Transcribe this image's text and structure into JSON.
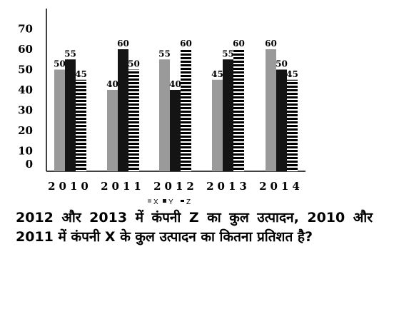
{
  "chart_data": {
    "type": "bar",
    "categories": [
      "2010",
      "2011",
      "2012",
      "2013",
      "2014"
    ],
    "series": [
      {
        "name": "X",
        "values": [
          50,
          40,
          55,
          45,
          60
        ],
        "color": "#9a9a9a",
        "pattern": "solid"
      },
      {
        "name": "Y",
        "values": [
          55,
          60,
          40,
          55,
          50
        ],
        "color": "#141414",
        "pattern": "solid"
      },
      {
        "name": "Z",
        "values": [
          45,
          50,
          60,
          60,
          45
        ],
        "color": "#000000",
        "pattern": "horizontal-stripes"
      }
    ],
    "yticks": [
      0,
      10,
      20,
      30,
      40,
      50,
      60,
      70
    ],
    "ylim": [
      0,
      70
    ],
    "grid": false,
    "legend_position": "bottom"
  },
  "question": "2012 और 2013 में कंपनी Z का कुल उत्पादन, 2010 और 2011 में कंपनी X के कुल उत्पादन का कितना प्रतिशत है?"
}
